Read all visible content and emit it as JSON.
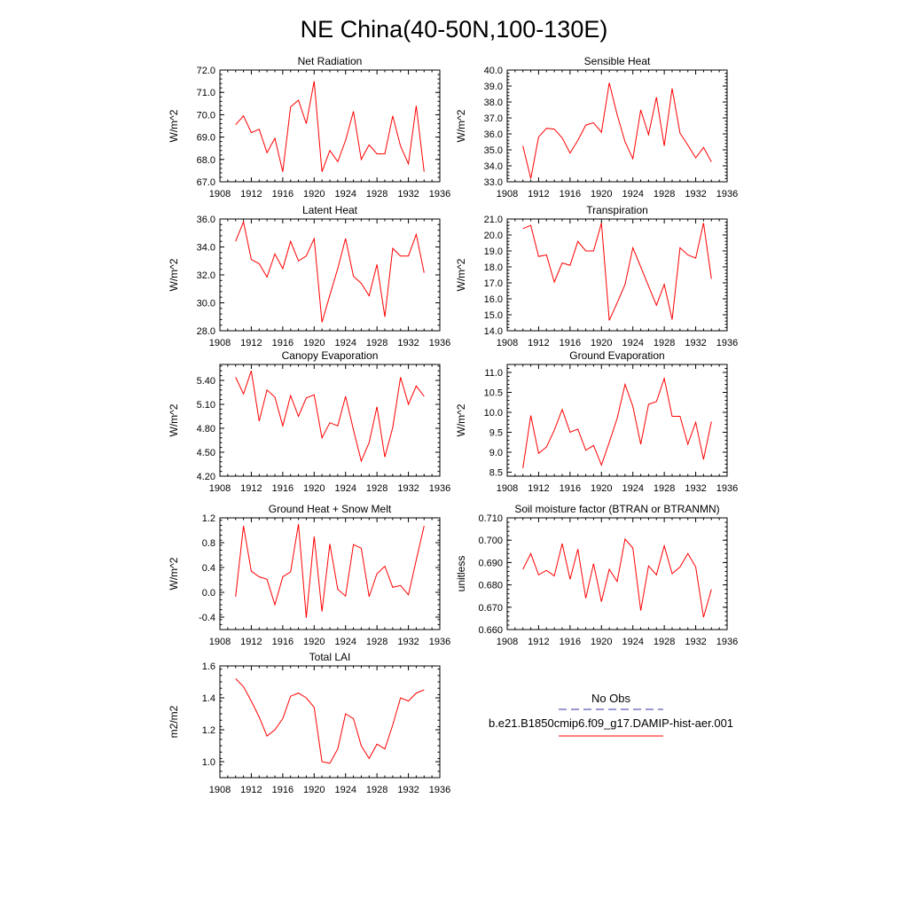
{
  "page_title": "NE China(40-50N,100-130E)",
  "legend": {
    "obs_label": "No Obs",
    "model_label": "b.e21.B1850cmip6.f09_g17.DAMIP-hist-aer.001",
    "obs_color": "#3333aa",
    "model_color": "#ff0000"
  },
  "chart_data": [
    {
      "type": "line",
      "title": "Net Radiation",
      "ylabel": "W/m^2",
      "xlim": [
        1908,
        1936
      ],
      "ylim": [
        67,
        72
      ],
      "xticks": [
        1908,
        1912,
        1916,
        1920,
        1924,
        1928,
        1932,
        1936
      ],
      "yticks": [
        67,
        68,
        69,
        70,
        71,
        72
      ],
      "ytick_labels": [
        "67.0",
        "68.0",
        "69.0",
        "70.0",
        "71.0",
        "72.0"
      ],
      "x": [
        1910,
        1911,
        1912,
        1913,
        1914,
        1915,
        1916,
        1917,
        1918,
        1919,
        1920,
        1921,
        1922,
        1923,
        1924,
        1925,
        1926,
        1927,
        1928,
        1929,
        1930,
        1931,
        1932,
        1933,
        1934
      ],
      "series": [
        {
          "values": [
            69.55,
            69.95,
            69.2,
            69.35,
            68.3,
            68.95,
            67.45,
            70.35,
            70.65,
            69.6,
            71.5,
            67.45,
            68.4,
            67.9,
            68.85,
            70.15,
            68.0,
            68.65,
            68.25,
            68.25,
            69.95,
            68.6,
            67.8,
            70.4,
            67.45
          ]
        }
      ]
    },
    {
      "type": "line",
      "title": "Sensible Heat",
      "ylabel": "W/m^2",
      "xlim": [
        1908,
        1936
      ],
      "ylim": [
        33,
        40
      ],
      "xticks": [
        1908,
        1912,
        1916,
        1920,
        1924,
        1928,
        1932,
        1936
      ],
      "yticks": [
        33,
        34,
        35,
        36,
        37,
        38,
        39,
        40
      ],
      "ytick_labels": [
        "33.0",
        "34.0",
        "35.0",
        "36.0",
        "37.0",
        "38.0",
        "39.0",
        "40.0"
      ],
      "x": [
        1910,
        1911,
        1912,
        1913,
        1914,
        1915,
        1916,
        1917,
        1918,
        1919,
        1920,
        1921,
        1922,
        1923,
        1924,
        1925,
        1926,
        1927,
        1928,
        1929,
        1930,
        1931,
        1932,
        1933,
        1934
      ],
      "series": [
        {
          "values": [
            35.25,
            33.2,
            35.8,
            36.35,
            36.3,
            35.75,
            34.8,
            35.6,
            36.55,
            36.7,
            36.1,
            39.2,
            37.2,
            35.5,
            34.45,
            37.5,
            35.95,
            38.3,
            35.25,
            38.85,
            36.05,
            35.3,
            34.5,
            35.15,
            34.25
          ]
        }
      ]
    },
    {
      "type": "line",
      "title": "Latent Heat",
      "ylabel": "W/m^2",
      "xlim": [
        1908,
        1936
      ],
      "ylim": [
        28,
        36
      ],
      "xticks": [
        1908,
        1912,
        1916,
        1920,
        1924,
        1928,
        1932,
        1936
      ],
      "yticks": [
        28,
        30,
        32,
        34,
        36
      ],
      "ytick_labels": [
        "28.0",
        "30.0",
        "32.0",
        "34.0",
        "36.0"
      ],
      "x": [
        1910,
        1911,
        1912,
        1913,
        1914,
        1915,
        1916,
        1917,
        1918,
        1919,
        1920,
        1921,
        1922,
        1923,
        1924,
        1925,
        1926,
        1927,
        1928,
        1929,
        1930,
        1931,
        1932,
        1933,
        1934
      ],
      "series": [
        {
          "values": [
            34.4,
            35.8,
            33.1,
            32.8,
            31.85,
            33.5,
            32.45,
            34.4,
            33.0,
            33.35,
            34.6,
            28.6,
            30.55,
            32.45,
            34.6,
            31.9,
            31.4,
            30.5,
            32.75,
            29.0,
            33.9,
            33.35,
            33.35,
            34.9,
            32.15
          ]
        }
      ]
    },
    {
      "type": "line",
      "title": "Transpiration",
      "ylabel": "W/m^2",
      "xlim": [
        1908,
        1936
      ],
      "ylim": [
        14,
        21
      ],
      "xticks": [
        1908,
        1912,
        1916,
        1920,
        1924,
        1928,
        1932,
        1936
      ],
      "yticks": [
        14,
        15,
        16,
        17,
        18,
        19,
        20,
        21
      ],
      "ytick_labels": [
        "14.0",
        "15.0",
        "16.0",
        "17.0",
        "18.0",
        "19.0",
        "20.0",
        "21.0"
      ],
      "x": [
        1910,
        1911,
        1912,
        1913,
        1914,
        1915,
        1916,
        1917,
        1918,
        1919,
        1920,
        1921,
        1922,
        1923,
        1924,
        1925,
        1926,
        1927,
        1928,
        1929,
        1930,
        1931,
        1932,
        1933,
        1934
      ],
      "series": [
        {
          "values": [
            20.4,
            20.6,
            18.65,
            18.75,
            17.05,
            18.25,
            18.1,
            19.6,
            19.0,
            19.0,
            20.75,
            14.65,
            15.75,
            16.9,
            19.2,
            18.0,
            16.8,
            15.6,
            16.9,
            14.7,
            19.2,
            18.75,
            18.55,
            20.75,
            17.25
          ]
        }
      ]
    },
    {
      "type": "line",
      "title": "Canopy Evaporation",
      "ylabel": "W/m^2",
      "xlim": [
        1908,
        1936
      ],
      "ylim": [
        4.2,
        5.6
      ],
      "xticks": [
        1908,
        1912,
        1916,
        1920,
        1924,
        1928,
        1932,
        1936
      ],
      "yticks": [
        4.2,
        4.5,
        4.8,
        5.1,
        5.4
      ],
      "ytick_labels": [
        "4.20",
        "4.50",
        "4.80",
        "5.10",
        "5.40"
      ],
      "x": [
        1910,
        1911,
        1912,
        1913,
        1914,
        1915,
        1916,
        1917,
        1918,
        1919,
        1920,
        1921,
        1922,
        1923,
        1924,
        1925,
        1926,
        1927,
        1928,
        1929,
        1930,
        1931,
        1932,
        1933,
        1934
      ],
      "series": [
        {
          "values": [
            5.44,
            5.23,
            5.52,
            4.89,
            5.28,
            5.19,
            4.83,
            5.21,
            4.95,
            5.18,
            5.22,
            4.68,
            4.87,
            4.83,
            5.2,
            4.78,
            4.39,
            4.62,
            5.07,
            4.44,
            4.81,
            5.44,
            5.1,
            5.33,
            5.2
          ]
        }
      ]
    },
    {
      "type": "line",
      "title": "Ground Evaporation",
      "ylabel": "W/m^2",
      "xlim": [
        1908,
        1936
      ],
      "ylim": [
        8.4,
        11.2
      ],
      "xticks": [
        1908,
        1912,
        1916,
        1920,
        1924,
        1928,
        1932,
        1936
      ],
      "yticks": [
        8.5,
        9.0,
        9.5,
        10.0,
        10.5,
        11.0
      ],
      "ytick_labels": [
        "8.5",
        "9.0",
        "9.5",
        "10.0",
        "10.5",
        "11.0"
      ],
      "x": [
        1910,
        1911,
        1912,
        1913,
        1914,
        1915,
        1916,
        1917,
        1918,
        1919,
        1920,
        1921,
        1922,
        1923,
        1924,
        1925,
        1926,
        1927,
        1928,
        1929,
        1930,
        1931,
        1932,
        1933,
        1934
      ],
      "series": [
        {
          "values": [
            8.6,
            9.92,
            8.97,
            9.13,
            9.55,
            10.07,
            9.5,
            9.58,
            9.05,
            9.17,
            8.68,
            9.25,
            9.85,
            10.7,
            10.15,
            9.2,
            10.2,
            10.27,
            10.85,
            9.9,
            9.9,
            9.2,
            9.75,
            8.82,
            9.77
          ]
        }
      ]
    },
    {
      "type": "line",
      "title": "Ground Heat + Snow Melt",
      "ylabel": "W/m^2",
      "xlim": [
        1908,
        1936
      ],
      "ylim": [
        -0.6,
        1.2
      ],
      "xticks": [
        1908,
        1912,
        1916,
        1920,
        1924,
        1928,
        1932,
        1936
      ],
      "yticks": [
        -0.4,
        0.0,
        0.4,
        0.8,
        1.2
      ],
      "ytick_labels": [
        "-0.4",
        "0.0",
        "0.4",
        "0.8",
        "1.2"
      ],
      "x": [
        1910,
        1911,
        1912,
        1913,
        1914,
        1915,
        1916,
        1917,
        1918,
        1919,
        1920,
        1921,
        1922,
        1923,
        1924,
        1925,
        1926,
        1927,
        1928,
        1929,
        1930,
        1931,
        1932,
        1933,
        1934
      ],
      "series": [
        {
          "values": [
            -0.07,
            1.07,
            0.34,
            0.25,
            0.21,
            -0.2,
            0.25,
            0.33,
            1.1,
            -0.41,
            0.9,
            -0.31,
            0.78,
            0.05,
            -0.06,
            0.77,
            0.71,
            -0.07,
            0.3,
            0.42,
            0.08,
            0.11,
            -0.04,
            0.52,
            1.07
          ]
        }
      ]
    },
    {
      "type": "line",
      "title": "Soil moisture factor (BTRAN or BTRANMN)",
      "ylabel": "unitless",
      "xlim": [
        1908,
        1936
      ],
      "ylim": [
        0.66,
        0.71
      ],
      "xticks": [
        1908,
        1912,
        1916,
        1920,
        1924,
        1928,
        1932,
        1936
      ],
      "yticks": [
        0.66,
        0.67,
        0.68,
        0.69,
        0.7,
        0.71
      ],
      "ytick_labels": [
        "0.660",
        "0.670",
        "0.680",
        "0.690",
        "0.700",
        "0.710"
      ],
      "x": [
        1910,
        1911,
        1912,
        1913,
        1914,
        1915,
        1916,
        1917,
        1918,
        1919,
        1920,
        1921,
        1922,
        1923,
        1924,
        1925,
        1926,
        1927,
        1928,
        1929,
        1930,
        1931,
        1932,
        1933,
        1934
      ],
      "series": [
        {
          "values": [
            0.687,
            0.694,
            0.6845,
            0.6865,
            0.684,
            0.6985,
            0.6825,
            0.696,
            0.674,
            0.6895,
            0.6725,
            0.687,
            0.6815,
            0.7005,
            0.6965,
            0.6685,
            0.6885,
            0.6845,
            0.6975,
            0.685,
            0.688,
            0.694,
            0.688,
            0.6655,
            0.678
          ]
        }
      ]
    },
    {
      "type": "line",
      "title": "Total LAI",
      "ylabel": "m2/m2",
      "xlim": [
        1908,
        1936
      ],
      "ylim": [
        0.9,
        1.6
      ],
      "xticks": [
        1908,
        1912,
        1916,
        1920,
        1924,
        1928,
        1932,
        1936
      ],
      "yticks": [
        1.0,
        1.2,
        1.4,
        1.6
      ],
      "ytick_labels": [
        "1.0",
        "1.2",
        "1.4",
        "1.6"
      ],
      "x": [
        1910,
        1911,
        1912,
        1913,
        1914,
        1915,
        1916,
        1917,
        1918,
        1919,
        1920,
        1921,
        1922,
        1923,
        1924,
        1925,
        1926,
        1927,
        1928,
        1929,
        1930,
        1931,
        1932,
        1933,
        1934
      ],
      "series": [
        {
          "values": [
            1.52,
            1.47,
            1.38,
            1.28,
            1.16,
            1.2,
            1.27,
            1.41,
            1.43,
            1.4,
            1.34,
            1.0,
            0.99,
            1.08,
            1.3,
            1.27,
            1.1,
            1.02,
            1.11,
            1.08,
            1.23,
            1.4,
            1.38,
            1.43,
            1.45
          ]
        }
      ]
    }
  ]
}
